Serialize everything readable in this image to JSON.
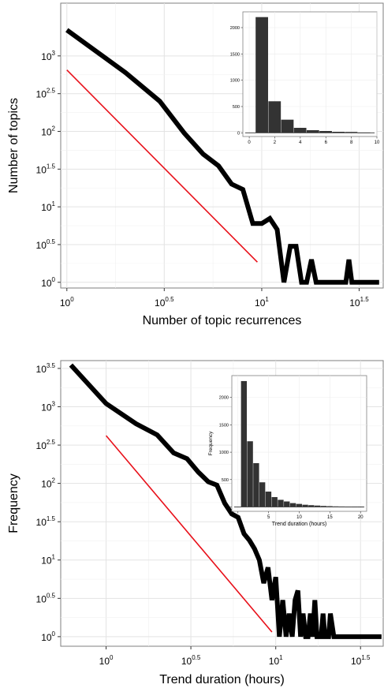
{
  "chart_data": [
    {
      "type": "line",
      "xlabel": "Number of topic recurrences",
      "ylabel": "Number of topics",
      "x_scale": "log10",
      "y_scale": "log10",
      "xlim": [
        0.93,
        42
      ],
      "ylim": [
        0.84,
        5000
      ],
      "x_ticks": [
        1,
        3.16,
        10,
        31.6
      ],
      "x_tick_labels": [
        {
          "base": "10",
          "exp": "0"
        },
        {
          "base": "10",
          "exp": "0.5"
        },
        {
          "base": "10",
          "exp": "1"
        },
        {
          "base": "10",
          "exp": "1.5"
        }
      ],
      "y_ticks": [
        1,
        3.16,
        10,
        31.6,
        100,
        316,
        1000
      ],
      "y_tick_labels": [
        {
          "base": "10",
          "exp": "0"
        },
        {
          "base": "10",
          "exp": "0.5"
        },
        {
          "base": "10",
          "exp": "1"
        },
        {
          "base": "10",
          "exp": "1.5"
        },
        {
          "base": "10",
          "exp": "2"
        },
        {
          "base": "10",
          "exp": "2.5"
        },
        {
          "base": "10",
          "exp": "3"
        }
      ],
      "grid": true,
      "series": [
        {
          "style": "data",
          "color": "#000000",
          "x": [
            1,
            2,
            3,
            4,
            5,
            6,
            7,
            8,
            9,
            10,
            11,
            12,
            13,
            14,
            15,
            16,
            17,
            18,
            19,
            20,
            21,
            22,
            23,
            24,
            25,
            26,
            27,
            28,
            29,
            30,
            31,
            32,
            33,
            34,
            35,
            36,
            37,
            38,
            39,
            40
          ],
          "y": [
            2200,
            600,
            250,
            95,
            50,
            35,
            20,
            17,
            6,
            6,
            7,
            5,
            1,
            3,
            3,
            1,
            1,
            2,
            1,
            1,
            1,
            1,
            1,
            1,
            1,
            1,
            1,
            2,
            1,
            1,
            1,
            1,
            1,
            1,
            1,
            1,
            1,
            1,
            1,
            1
          ]
        },
        {
          "style": "fit",
          "color": "#e8101a",
          "x": [
            1,
            9.5
          ],
          "y": [
            650,
            1.85
          ]
        }
      ],
      "inset": {
        "type": "bar",
        "categories": [
          1,
          2,
          3,
          4,
          5,
          6,
          7,
          8,
          9
        ],
        "values": [
          2200,
          600,
          250,
          95,
          50,
          35,
          20,
          17,
          6
        ],
        "xlim": [
          -0.5,
          10
        ],
        "ylim": [
          -70,
          2300
        ],
        "x_ticks": [
          0,
          2,
          4,
          6,
          8,
          10
        ],
        "y_ticks": [
          0,
          500,
          1000,
          1500,
          2000
        ],
        "xlabel": "",
        "ylabel": "",
        "bar_color": "#333333"
      }
    },
    {
      "type": "line",
      "xlabel": "Trend duration (hours)",
      "ylabel": "Frequency",
      "x_scale": "log10",
      "y_scale": "log10",
      "xlim": [
        0.54,
        43
      ],
      "ylim": [
        0.75,
        4000
      ],
      "x_ticks": [
        1,
        3.16,
        10,
        31.6
      ],
      "x_tick_labels": [
        {
          "base": "10",
          "exp": "0"
        },
        {
          "base": "10",
          "exp": "0.5"
        },
        {
          "base": "10",
          "exp": "1"
        },
        {
          "base": "10",
          "exp": "1.5"
        }
      ],
      "y_ticks": [
        1,
        3.16,
        10,
        31.6,
        100,
        316,
        1000,
        3162
      ],
      "y_tick_labels": [
        {
          "base": "10",
          "exp": "0"
        },
        {
          "base": "10",
          "exp": "0.5"
        },
        {
          "base": "10",
          "exp": "1"
        },
        {
          "base": "10",
          "exp": "1.5"
        },
        {
          "base": "10",
          "exp": "2"
        },
        {
          "base": "10",
          "exp": "2.5"
        },
        {
          "base": "10",
          "exp": "3"
        },
        {
          "base": "10",
          "exp": "3.5"
        }
      ],
      "grid": true,
      "series": [
        {
          "style": "data",
          "color": "#000000",
          "x": [
            0.62,
            1.0,
            1.5,
            2.0,
            2.5,
            3.0,
            3.5,
            4.0,
            4.5,
            5.0,
            5.5,
            6.0,
            6.5,
            7.0,
            7.5,
            8.0,
            8.5,
            9.0,
            9.5,
            10.0,
            10.5,
            11.0,
            11.5,
            12.0,
            12.5,
            13.0,
            13.5,
            14.0,
            14.5,
            15.0,
            15.5,
            16.0,
            16.5,
            17.0,
            17.5,
            18.0,
            18.5,
            19.0,
            19.5,
            20.0,
            20.5,
            21.0,
            22.0,
            23.0,
            24.0,
            25.0,
            26.0,
            27.0,
            28.0,
            29.0,
            30.0,
            32.0,
            34.0,
            36.0,
            38.0,
            40.0,
            42.0
          ],
          "y": [
            3500,
            1100,
            600,
            430,
            250,
            210,
            140,
            105,
            95,
            55,
            40,
            36,
            22,
            18,
            14,
            10,
            5,
            8,
            3,
            6,
            1,
            3,
            1,
            2,
            1,
            3,
            4,
            1,
            2,
            1,
            1,
            2,
            1,
            3,
            1,
            1,
            1,
            2,
            1,
            1,
            1,
            2,
            1,
            1,
            1,
            1,
            1,
            1,
            1,
            1,
            1,
            1,
            1,
            1,
            1,
            1,
            1
          ]
        },
        {
          "style": "fit",
          "color": "#e8101a",
          "x": [
            1,
            9.5
          ],
          "y": [
            420,
            1.15
          ]
        }
      ],
      "inset": {
        "type": "bar",
        "categories": [
          1,
          2,
          3,
          4,
          5,
          6,
          7,
          8,
          9,
          10,
          11,
          12,
          13,
          14,
          15,
          16,
          17,
          18,
          19,
          20
        ],
        "values": [
          2300,
          1200,
          800,
          450,
          280,
          180,
          130,
          100,
          70,
          55,
          40,
          32,
          25,
          18,
          14,
          10,
          8,
          6,
          5,
          4
        ],
        "xlim": [
          -1,
          21
        ],
        "ylim": [
          -80,
          2400
        ],
        "x_ticks": [
          0,
          5,
          10,
          15,
          20
        ],
        "y_ticks": [
          0,
          500,
          1000,
          1500,
          2000
        ],
        "xlabel": "Trend duration (hours)",
        "ylabel": "Frequency",
        "bar_color": "#333333"
      }
    }
  ]
}
